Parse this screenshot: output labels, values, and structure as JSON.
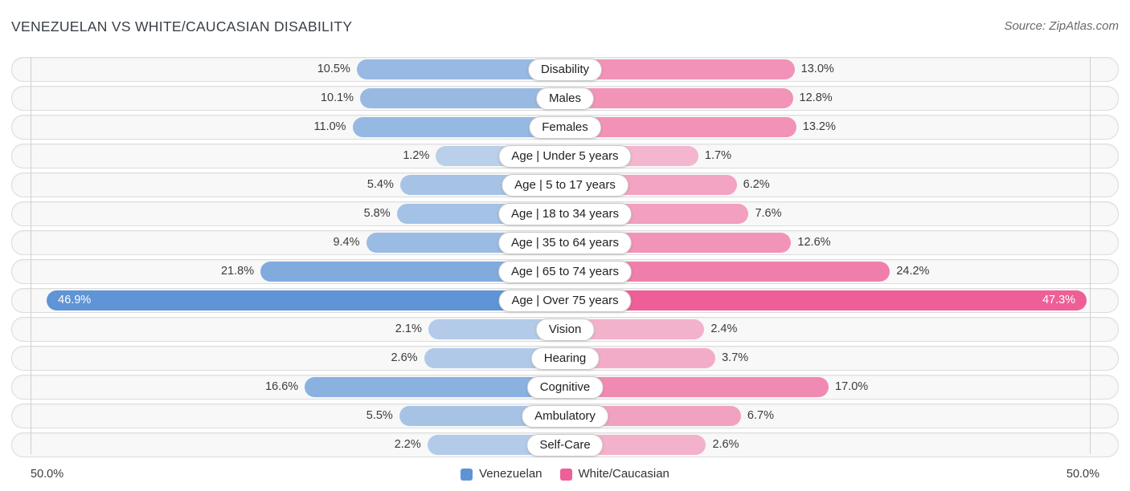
{
  "header": {
    "title": "VENEZUELAN VS WHITE/CAUCASIAN DISABILITY",
    "source": "Source: ZipAtlas.com"
  },
  "chart_data": {
    "type": "bar",
    "variant": "horizontal-diverging-pyramid",
    "title": "VENEZUELAN VS WHITE/CAUCASIAN DISABILITY",
    "categories": [
      "Disability",
      "Males",
      "Females",
      "Age | Under 5 years",
      "Age | 5 to 17 years",
      "Age | 18 to 34 years",
      "Age | 35 to 64 years",
      "Age | 65 to 74 years",
      "Age | Over 75 years",
      "Vision",
      "Hearing",
      "Cognitive",
      "Ambulatory",
      "Self-Care"
    ],
    "series": [
      {
        "name": "Venezuelan",
        "side": "left",
        "color": "#5E94D6",
        "values": [
          10.5,
          10.1,
          11.0,
          1.2,
          5.4,
          5.8,
          9.4,
          21.8,
          46.9,
          2.1,
          2.6,
          16.6,
          5.5,
          2.2
        ]
      },
      {
        "name": "White/Caucasian",
        "side": "right",
        "color": "#EE5F97",
        "values": [
          13.0,
          12.8,
          13.2,
          1.7,
          6.2,
          7.6,
          12.6,
          24.2,
          47.3,
          2.4,
          3.7,
          17.0,
          6.7,
          2.6
        ]
      }
    ],
    "value_suffix": "%",
    "axis": {
      "left_label": "50.0%",
      "right_label": "50.0%",
      "max_percent": 50.0
    },
    "legend_position": "bottom-center",
    "grid": "side-gridlines-only"
  }
}
